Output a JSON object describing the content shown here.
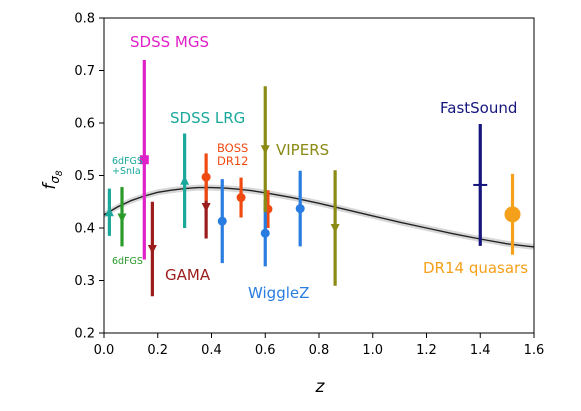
{
  "chart_data": {
    "type": "scatter",
    "title": "",
    "xlabel": "z",
    "ylabel": "fσ8",
    "xlim": [
      0.0,
      1.6
    ],
    "ylim": [
      0.2,
      0.8
    ],
    "xticks": [
      0.0,
      0.2,
      0.4,
      0.6,
      0.8,
      1.0,
      1.2,
      1.4,
      1.6
    ],
    "yticks": [
      0.2,
      0.3,
      0.4,
      0.5,
      0.6,
      0.7,
      0.8
    ],
    "grid": false,
    "model_curve": {
      "x": [
        0.0,
        0.05,
        0.1,
        0.15,
        0.2,
        0.25,
        0.3,
        0.35,
        0.4,
        0.45,
        0.5,
        0.55,
        0.6,
        0.7,
        0.8,
        0.9,
        1.0,
        1.1,
        1.2,
        1.3,
        1.4,
        1.5,
        1.6
      ],
      "y": [
        0.425,
        0.44,
        0.452,
        0.461,
        0.468,
        0.472,
        0.475,
        0.477,
        0.477,
        0.476,
        0.474,
        0.471,
        0.467,
        0.458,
        0.447,
        0.435,
        0.423,
        0.411,
        0.4,
        0.389,
        0.379,
        0.37,
        0.364
      ],
      "color": "#222222",
      "band_color": "#bdbdbd"
    },
    "series": [
      {
        "name": "SDSS MGS",
        "label": "SDSS MGS",
        "color": "#e020c8",
        "marker": "square",
        "points": [
          {
            "x": 0.15,
            "y": 0.53,
            "ylo": 0.34,
            "yhi": 0.72
          }
        ]
      },
      {
        "name": "SDSS LRG",
        "label": "SDSS LRG",
        "color": "#1aa89a",
        "marker": "triangle-up",
        "points": [
          {
            "x": 0.3,
            "y": 0.49,
            "ylo": 0.4,
            "yhi": 0.58
          }
        ]
      },
      {
        "name": "6dFGS+SnIa",
        "label": [
          "6dFGS",
          "+SnIa"
        ],
        "color": "#1aa89a",
        "marker": "triangle-up",
        "points": [
          {
            "x": 0.02,
            "y": 0.43,
            "ylo": 0.385,
            "yhi": 0.475
          }
        ]
      },
      {
        "name": "6dFGS",
        "label": "6dFGS",
        "color": "#2a9a2a",
        "marker": "triangle-down",
        "points": [
          {
            "x": 0.067,
            "y": 0.42,
            "ylo": 0.365,
            "yhi": 0.478
          }
        ]
      },
      {
        "name": "GAMA",
        "label": "GAMA",
        "color": "#9b1c1c",
        "marker": "triangle-down",
        "points": [
          {
            "x": 0.18,
            "y": 0.36,
            "ylo": 0.27,
            "yhi": 0.45
          },
          {
            "x": 0.38,
            "y": 0.44,
            "ylo": 0.38,
            "yhi": 0.5
          }
        ]
      },
      {
        "name": "BOSS DR12",
        "label": [
          "BOSS",
          "DR12"
        ],
        "color": "#f04a12",
        "marker": "circle",
        "points": [
          {
            "x": 0.38,
            "y": 0.497,
            "ylo": 0.452,
            "yhi": 0.542
          },
          {
            "x": 0.51,
            "y": 0.458,
            "ylo": 0.42,
            "yhi": 0.496
          },
          {
            "x": 0.61,
            "y": 0.436,
            "ylo": 0.4,
            "yhi": 0.472
          }
        ]
      },
      {
        "name": "WiggleZ",
        "label": "WiggleZ",
        "color": "#2a7de0",
        "marker": "circle",
        "points": [
          {
            "x": 0.44,
            "y": 0.413,
            "ylo": 0.333,
            "yhi": 0.493
          },
          {
            "x": 0.6,
            "y": 0.39,
            "ylo": 0.327,
            "yhi": 0.453
          },
          {
            "x": 0.73,
            "y": 0.437,
            "ylo": 0.365,
            "yhi": 0.509
          }
        ]
      },
      {
        "name": "VIPERS",
        "label": "VIPERS",
        "color": "#8a8a14",
        "marker": "triangle-down",
        "points": [
          {
            "x": 0.6,
            "y": 0.55,
            "ylo": 0.43,
            "yhi": 0.67
          },
          {
            "x": 0.86,
            "y": 0.4,
            "ylo": 0.29,
            "yhi": 0.51
          }
        ]
      },
      {
        "name": "FastSound",
        "label": "FastSound",
        "color": "#15157d",
        "marker": "hline",
        "points": [
          {
            "x": 1.4,
            "y": 0.482,
            "ylo": 0.366,
            "yhi": 0.598
          }
        ]
      },
      {
        "name": "DR14 quasars",
        "label": "DR14 quasars",
        "color": "#f5a01a",
        "marker": "circle-large",
        "points": [
          {
            "x": 1.52,
            "y": 0.426,
            "ylo": 0.349,
            "yhi": 0.503
          }
        ]
      }
    ]
  }
}
